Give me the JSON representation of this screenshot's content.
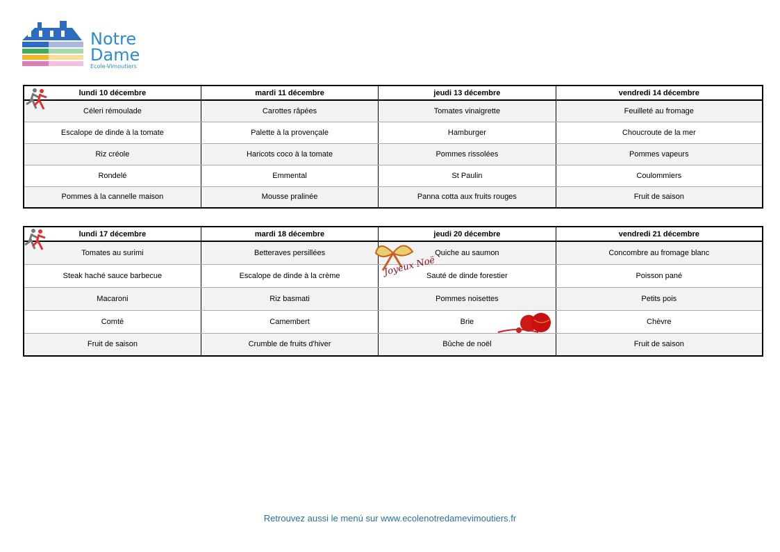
{
  "logo": {
    "text_line1": "Notre",
    "text_line2": "Dame",
    "subtitle": "Ecole-Vimoutiers"
  },
  "weeks": [
    {
      "days": [
        "lundi 10 décembre",
        "mardi 11 décembre",
        "jeudi 13 décembre",
        "vendredi 14 décembre"
      ],
      "rows": [
        [
          "Céleri rémoulade",
          "Carottes râpées",
          "Tomates vinaigrette",
          "Feuilleté au fromage"
        ],
        [
          "Escalope de dinde à la tomate",
          "Palette à la provençale",
          "Hamburger",
          "Choucroute de la mer"
        ],
        [
          "Riz créole",
          "Haricots coco à la tomate",
          "Pommes rissolées",
          "Pommes vapeurs"
        ],
        [
          "Rondelé",
          "Emmental",
          "St Paulin",
          "Coulommiers"
        ],
        [
          "Pommes à la cannelle maison",
          "Mousse pralinée",
          "Panna cotta aux fruits rouges",
          "Fruit de saison"
        ]
      ]
    },
    {
      "days": [
        "lundi 17 décembre",
        "mardi 18 décembre",
        "jeudi 20 décembre",
        "vendredi 21 décembre"
      ],
      "rows": [
        [
          "Tomates au surimi",
          "Betteraves persillées",
          "Quiche au saumon",
          "Concombre au fromage blanc"
        ],
        [
          "Steak haché sauce barbecue",
          "Escalope de dinde à la crème",
          "Sauté de dinde forestier",
          "Poisson pané"
        ],
        [
          "Macaroni",
          "Riz basmati",
          "Pommes noisettes",
          "Petits pois"
        ],
        [
          "Comté",
          "Camembert",
          "Brie",
          "Chèvre"
        ],
        [
          "Fruit de saison",
          "Crumble de fruits d'hiver",
          "Bûche de noël",
          "Fruit de saison"
        ]
      ]
    }
  ],
  "decor": {
    "christmas_label": "Joyeux Noël"
  },
  "footer": "Retrouvez aussi le menú sur www.ecolenotredamevimoutiers.fr"
}
